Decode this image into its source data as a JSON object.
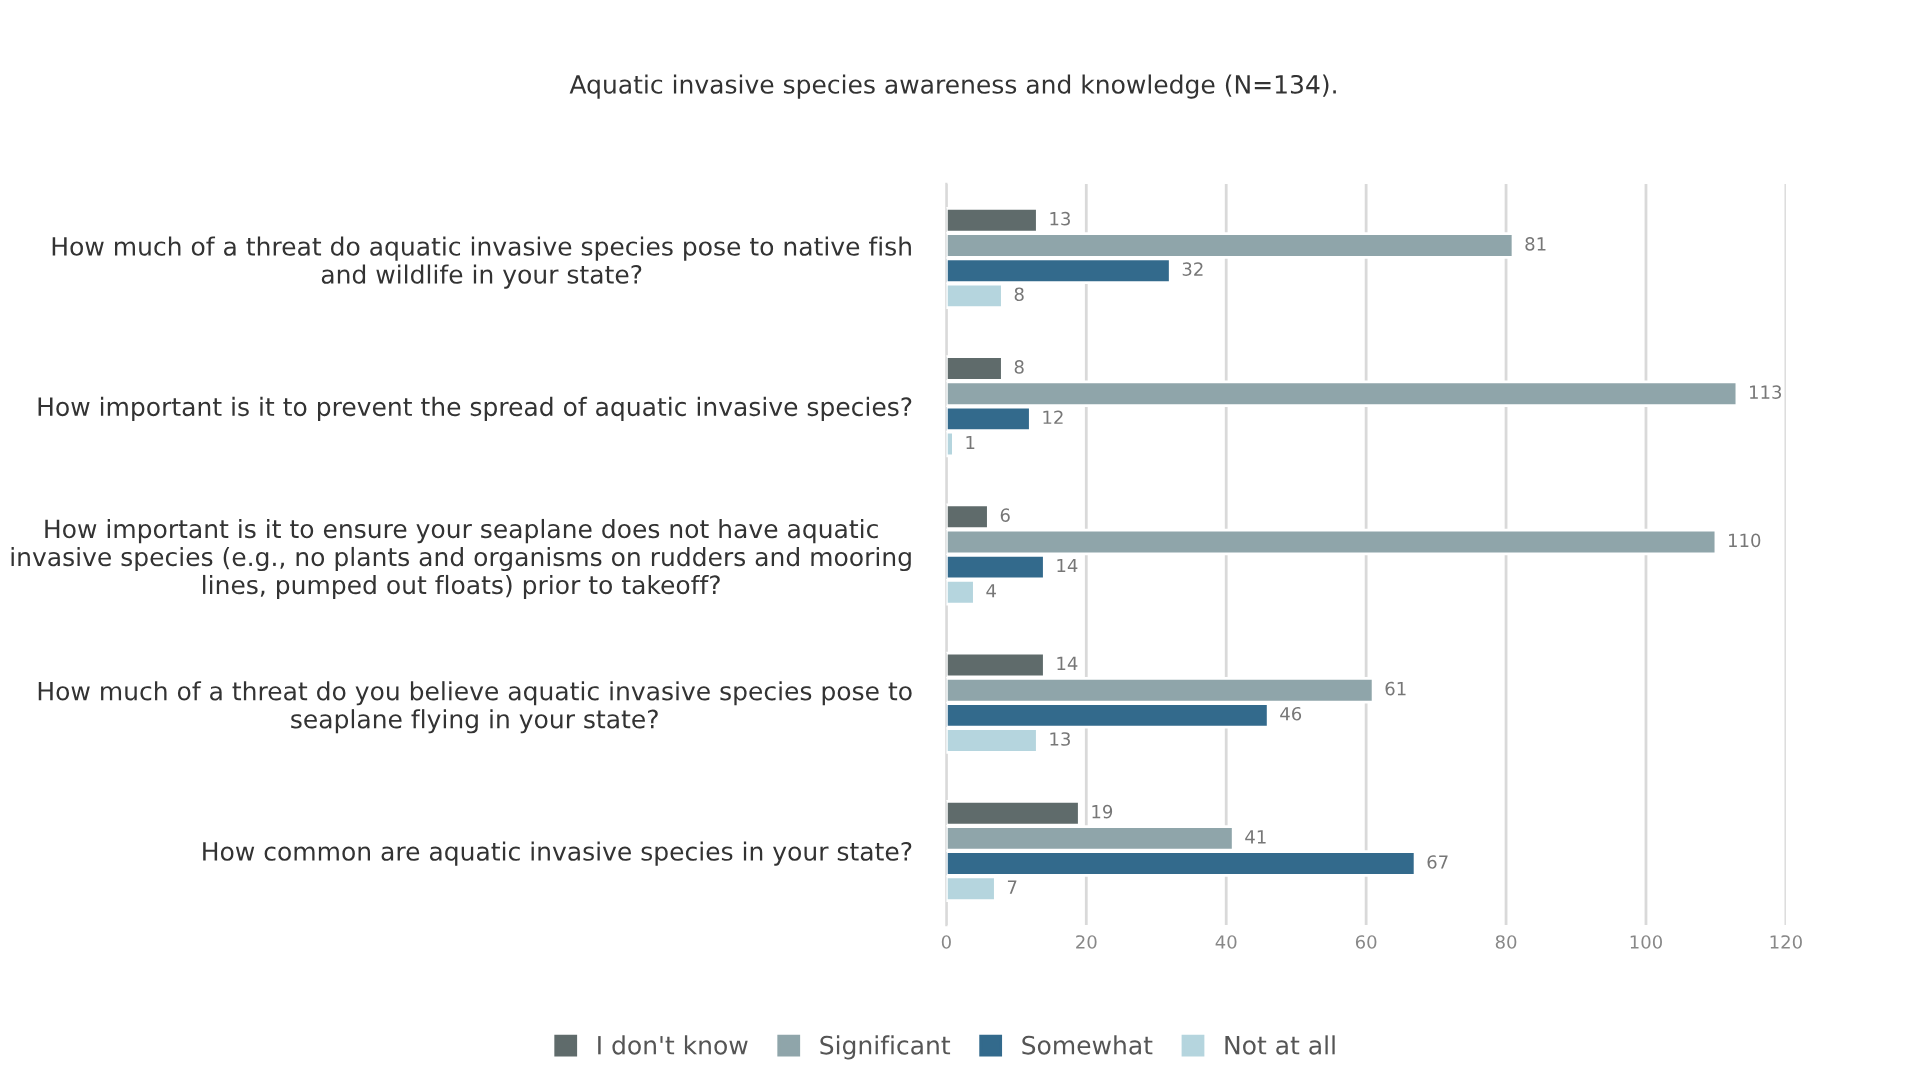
{
  "chart_data": {
    "type": "bar",
    "orientation": "horizontal",
    "title": "Aquatic invasive species awareness and knowledge (N=134).",
    "categories": [
      "How much of a threat do aquatic invasive species pose to native fish\nand wildlife in your state?",
      "How important is it to prevent the spread of aquatic invasive species?",
      "How important is it to ensure your seaplane does not have aquatic\ninvasive species (e.g., no plants and organisms on rudders and mooring\nlines, pumped out floats) prior to takeoff?",
      "How much of a threat do you believe aquatic invasive species pose to\nseaplane flying in your state?",
      "How common are aquatic invasive species in your state?"
    ],
    "series": [
      {
        "name": "I don't know",
        "color": "#5f6b6b",
        "values": [
          13,
          8,
          6,
          14,
          19
        ]
      },
      {
        "name": "Significant",
        "color": "#8fa5aa",
        "values": [
          81,
          113,
          110,
          61,
          41
        ]
      },
      {
        "name": "Somewhat",
        "color": "#336a8c",
        "values": [
          32,
          12,
          14,
          46,
          67
        ]
      },
      {
        "name": "Not at all",
        "color": "#b5d5de",
        "values": [
          8,
          1,
          4,
          13,
          7
        ]
      }
    ],
    "xlim": [
      0,
      120
    ],
    "xticks": [
      0,
      20,
      40,
      60,
      80,
      100,
      120
    ],
    "grid": "x",
    "legend": "bottom",
    "data_labels": true
  }
}
